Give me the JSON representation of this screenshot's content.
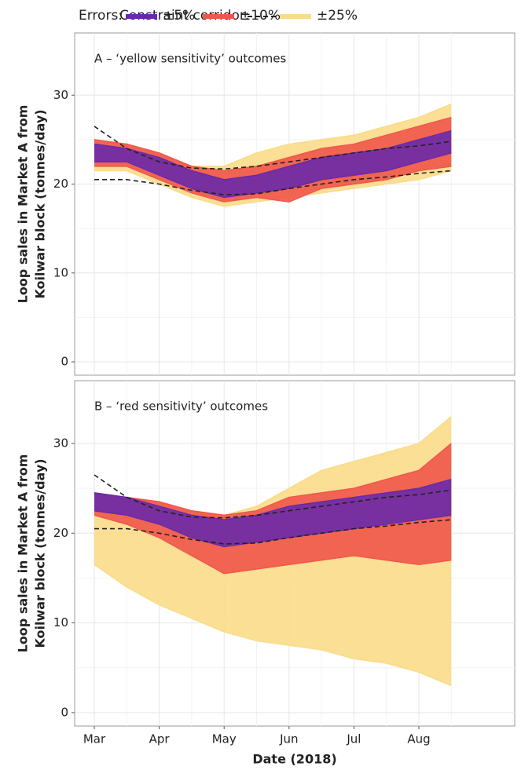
{
  "chart_data": [
    {
      "type": "band",
      "title": "A – ‘yellow sensitivity’ outcomes",
      "legend_title": "Errors:",
      "ylabel": [
        "Loop sales in Market A from",
        "Koilwar block (tonnes/day)"
      ],
      "ylim": [
        -1.5,
        37
      ],
      "yticks": [
        0,
        10,
        20,
        30
      ],
      "grid": true,
      "legend": "top",
      "series": [
        {
          "name": "±25%",
          "color": "#f9dc8a",
          "values": [
            25,
            24.5,
            23.5,
            22,
            22,
            23.5,
            24.5,
            25,
            25.5,
            26.5,
            27.5,
            29
          ],
          "lower": [
            21.5,
            21.5,
            20,
            18.5,
            17.5,
            18,
            18.5,
            19,
            19.5,
            20,
            20.5,
            21.5
          ]
        },
        {
          "name": "±10%",
          "color": "#f0574a",
          "values": [
            25,
            24.5,
            23.5,
            22,
            21.5,
            22,
            23,
            24,
            24.5,
            25.5,
            26.5,
            27.5
          ],
          "lower": [
            22,
            22,
            20.5,
            19,
            18,
            18.5,
            18,
            19.5,
            20,
            20.5,
            21.5,
            22
          ]
        },
        {
          "name": "±5%",
          "color": "#6a2aa8",
          "values": [
            24.5,
            24,
            23,
            21.5,
            20.5,
            21,
            22,
            23,
            23.5,
            24,
            25,
            26
          ],
          "lower": [
            22.5,
            22.5,
            21,
            19.5,
            18.5,
            19,
            19.5,
            20.5,
            21,
            21.5,
            22.5,
            23.5
          ]
        },
        {
          "name": "Constraint corridor:",
          "color": "#222222",
          "dashed": true,
          "values": [
            26.5,
            24,
            22.5,
            21.8,
            21.7,
            22,
            22.5,
            23,
            23.5,
            24,
            24.3,
            24.8
          ],
          "lower": [
            20.5,
            20.5,
            20,
            19.3,
            18.8,
            18.9,
            19.5,
            20,
            20.5,
            20.8,
            21.2,
            21.5
          ]
        }
      ]
    },
    {
      "type": "band",
      "title": "B – ‘red sensitivity’ outcomes",
      "xlabel": "Date (2018)",
      "ylabel": [
        "Loop sales in Market A from",
        "Koilwar block (tonnes/day)"
      ],
      "categories": [
        "Mar",
        null,
        "Apr",
        null,
        "May",
        null,
        "Jun",
        null,
        "Jul",
        null,
        "Aug",
        null
      ],
      "ylim": [
        -1.5,
        37
      ],
      "yticks": [
        0,
        10,
        20,
        30
      ],
      "grid": true,
      "series": [
        {
          "name": "±25%",
          "color": "#f9dc8a",
          "values": [
            24.5,
            24,
            23.5,
            22.5,
            22,
            23,
            25,
            27,
            28,
            29,
            30,
            33
          ],
          "lower": [
            16.5,
            14,
            12,
            10.5,
            9,
            8,
            7.5,
            7,
            6,
            5.5,
            4.5,
            3
          ]
        },
        {
          "name": "±10%",
          "color": "#f0574a",
          "values": [
            24.5,
            24,
            23.5,
            22.5,
            22,
            22.5,
            24,
            24.5,
            25,
            26,
            27,
            30
          ],
          "lower": [
            22,
            21,
            19.5,
            17.5,
            15.5,
            16,
            16.5,
            17,
            17.5,
            17,
            16.5,
            17
          ]
        },
        {
          "name": "±5%",
          "color": "#6a2aa8",
          "values": [
            24.5,
            24,
            23,
            22,
            21.5,
            22,
            23,
            23.5,
            24,
            24.5,
            25,
            26
          ],
          "lower": [
            22.5,
            22,
            21,
            19.5,
            18.5,
            19,
            19.5,
            20,
            20.5,
            21,
            21.5,
            22
          ]
        },
        {
          "name": "Constraint corridor:",
          "color": "#222222",
          "dashed": true,
          "values": [
            26.5,
            24,
            22.5,
            21.8,
            21.7,
            22,
            22.5,
            23,
            23.5,
            24,
            24.3,
            24.8
          ],
          "lower": [
            20.5,
            20.5,
            20,
            19.3,
            18.8,
            18.9,
            19.5,
            20,
            20.5,
            20.8,
            21.2,
            21.5
          ]
        }
      ]
    }
  ]
}
